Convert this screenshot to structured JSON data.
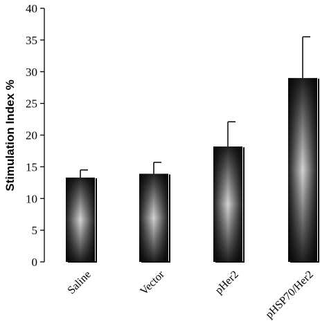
{
  "chart_data": {
    "type": "bar",
    "title": "",
    "xlabel": "",
    "ylabel": "Stimulation Index %",
    "ylim": [
      0,
      40
    ],
    "yticks": [
      0,
      5,
      10,
      15,
      20,
      25,
      30,
      35,
      40
    ],
    "categories": [
      "Saline",
      "Vector",
      "pHer2",
      "pHSP70/Her2"
    ],
    "values": [
      13.3,
      13.9,
      18.2,
      29.0
    ],
    "errors": [
      1.2,
      1.8,
      3.9,
      6.5
    ],
    "grid": false,
    "legend": "none",
    "colors": {
      "bar_dark": "#1a1a1a",
      "bar_light": "#d4d4d4",
      "shadow": "#000000"
    }
  }
}
